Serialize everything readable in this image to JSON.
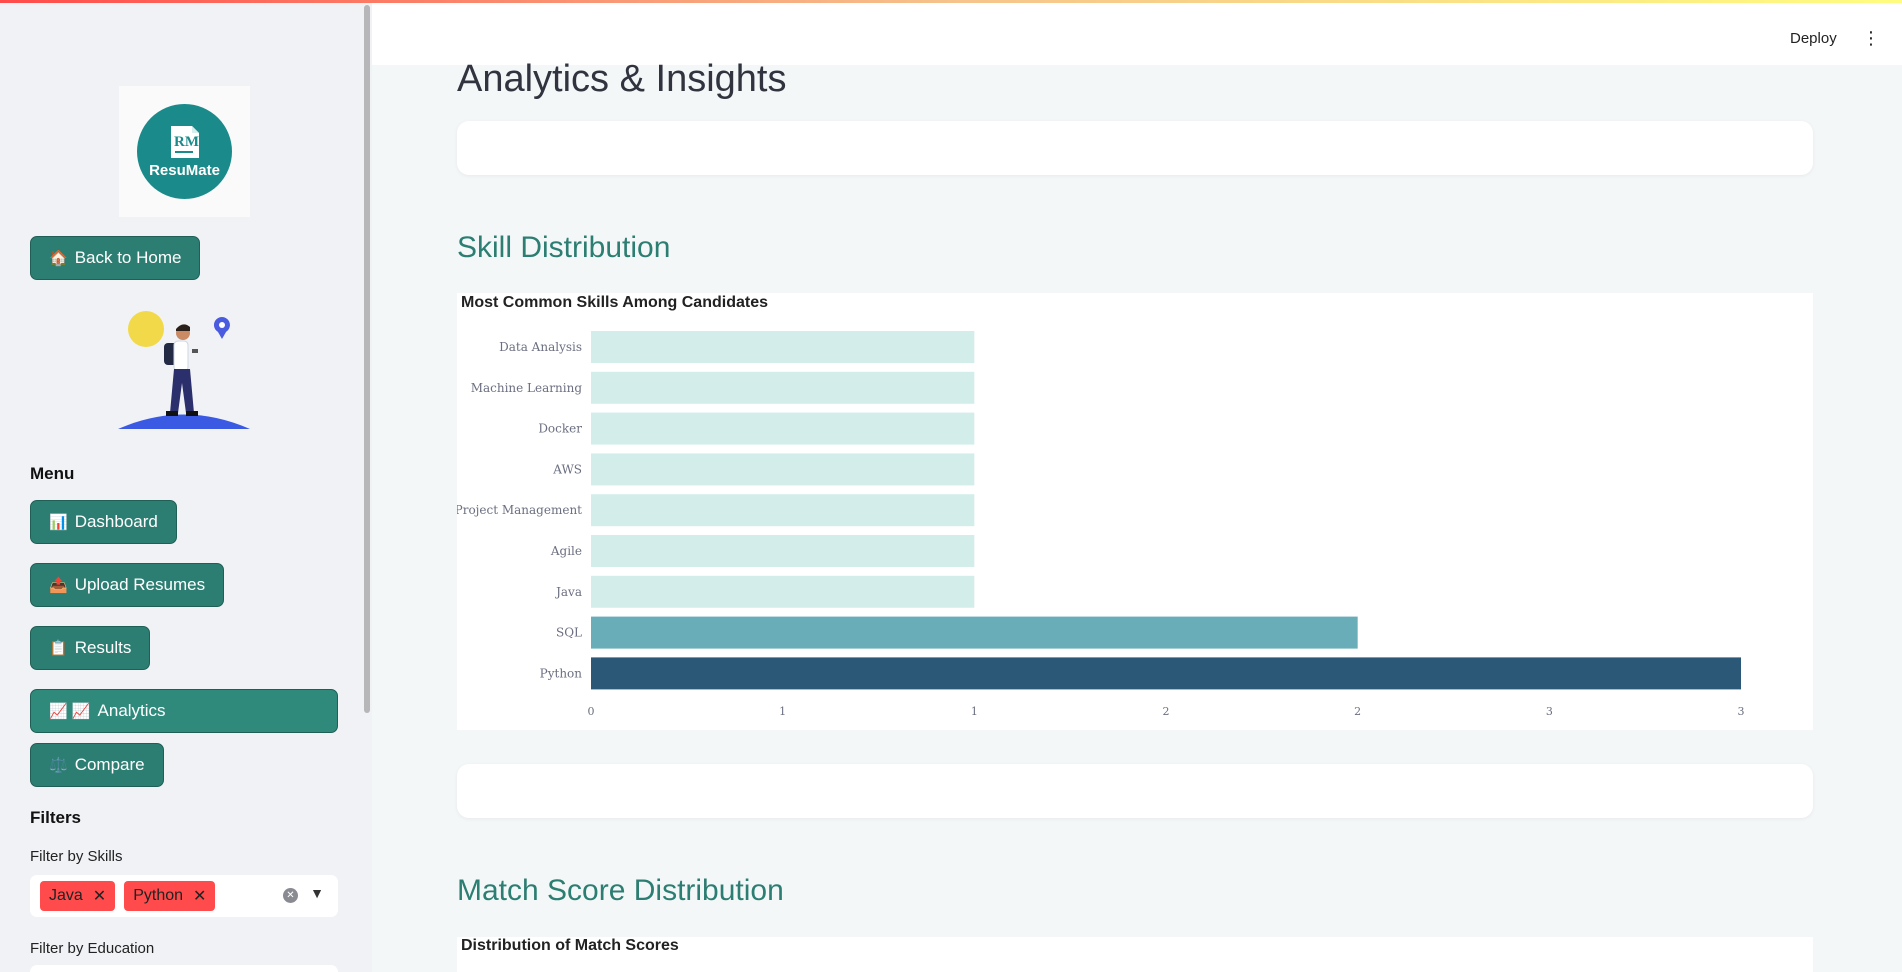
{
  "header": {
    "deploy_label": "Deploy",
    "menu_icon": "more-vertical-icon"
  },
  "sidebar": {
    "logo": {
      "monogram": "RM",
      "name": "ResuMate"
    },
    "back_home": {
      "icon": "🏠",
      "label": "Back to Home"
    },
    "menu_heading": "Menu",
    "menu": [
      {
        "icon": "📊",
        "label": "Dashboard"
      },
      {
        "icon": "📤",
        "label": "Upload Resumes"
      },
      {
        "icon": "📋",
        "label": "Results"
      },
      {
        "icon": "📈 📈",
        "label": "Analytics"
      },
      {
        "icon": "⚖️",
        "label": "Compare"
      }
    ],
    "filters_heading": "Filters",
    "filter_skills_label": "Filter by Skills",
    "selected_skills": [
      "Java",
      "Python"
    ],
    "filter_education_label": "Filter by Education"
  },
  "main": {
    "title": "Analytics & Insights",
    "skill_section_title": "Skill Distribution",
    "match_section_title": "Match Score Distribution",
    "match_chart_title": "Distribution of Match Scores"
  },
  "colors": {
    "accent": "#2d7e72",
    "bar_light": "#d3eeea",
    "bar_mid": "#69adb8",
    "bar_dark": "#2b5876"
  },
  "chart_data": {
    "type": "bar",
    "orientation": "horizontal",
    "title": "Most Common Skills Among Candidates",
    "categories": [
      "Data Analysis",
      "Machine Learning",
      "Docker",
      "AWS",
      "Project Management",
      "Agile",
      "Java",
      "SQL",
      "Python"
    ],
    "values": [
      1,
      1,
      1,
      1,
      1,
      1,
      1,
      2,
      3
    ],
    "xlim": [
      0,
      3
    ],
    "xticks": [
      0,
      0.5,
      1,
      1.5,
      2,
      2.5,
      3
    ],
    "xtick_labels": [
      "0",
      "1",
      "1",
      "2",
      "2",
      "3",
      "3"
    ],
    "xlabel": "",
    "ylabel": "",
    "grid": false
  }
}
